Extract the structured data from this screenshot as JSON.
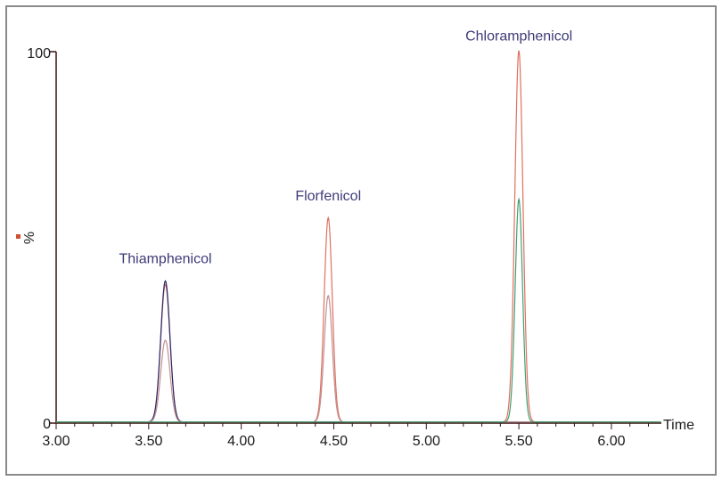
{
  "chart_data": {
    "type": "line",
    "xlabel": "Time",
    "ylabel": "%",
    "xlim": [
      3.0,
      6.27
    ],
    "ylim": [
      0,
      100
    ],
    "x_ticks": [
      "3.00",
      "3.50",
      "4.00",
      "4.50",
      "5.00",
      "5.50",
      "6.00"
    ],
    "y_ticks": [
      "0",
      "100"
    ],
    "grid": false,
    "series": [
      {
        "color": "#e07060",
        "peaks": [
          {
            "rt": 3.59,
            "height": 37,
            "width": 0.025
          },
          {
            "rt": 4.47,
            "height": 55,
            "width": 0.022
          },
          {
            "rt": 5.5,
            "height": 100,
            "width": 0.022
          }
        ]
      },
      {
        "color": "#2a2a6a",
        "peaks": [
          {
            "rt": 3.59,
            "height": 38,
            "width": 0.025
          }
        ]
      },
      {
        "color": "#c09090",
        "peaks": [
          {
            "rt": 3.59,
            "height": 22,
            "width": 0.025
          },
          {
            "rt": 4.47,
            "height": 34,
            "width": 0.022
          }
        ]
      },
      {
        "color": "#40a070",
        "peaks": [
          {
            "rt": 5.5,
            "height": 60,
            "width": 0.02
          }
        ]
      }
    ],
    "annotations": [
      {
        "text": "Thiamphenicol",
        "x": 3.59,
        "y": 43
      },
      {
        "text": "Florfenicol",
        "x": 4.47,
        "y": 60
      },
      {
        "text": "Chloramphenicol",
        "x": 5.5,
        "y": 103
      }
    ]
  }
}
